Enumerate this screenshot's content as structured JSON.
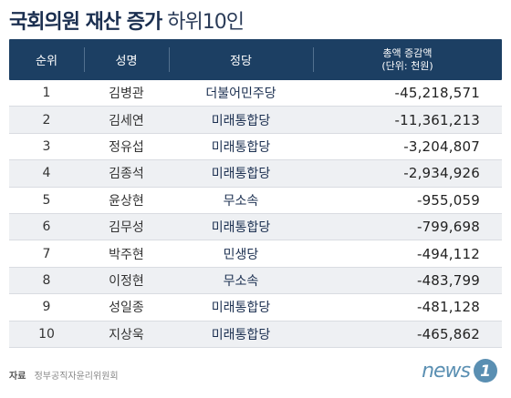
{
  "title": {
    "bold": "국회의원 재산 증가",
    "light": "하위10인"
  },
  "table": {
    "headers": {
      "rank": "순위",
      "name": "성명",
      "party": "정당",
      "amount_line1": "총액 증감액",
      "amount_line2": "(단위: 천원)"
    },
    "rows": [
      {
        "rank": "1",
        "name": "김병관",
        "party": "더불어민주당",
        "amount": "-45,218,571"
      },
      {
        "rank": "2",
        "name": "김세연",
        "party": "미래통합당",
        "amount": "-11,361,213"
      },
      {
        "rank": "3",
        "name": "정유섭",
        "party": "미래통합당",
        "amount": "-3,204,807"
      },
      {
        "rank": "4",
        "name": "김종석",
        "party": "미래통합당",
        "amount": "-2,934,926"
      },
      {
        "rank": "5",
        "name": "윤상현",
        "party": "무소속",
        "amount": "-955,059"
      },
      {
        "rank": "6",
        "name": "김무성",
        "party": "미래통합당",
        "amount": "-799,698"
      },
      {
        "rank": "7",
        "name": "박주현",
        "party": "민생당",
        "amount": "-494,112"
      },
      {
        "rank": "8",
        "name": "이정현",
        "party": "무소속",
        "amount": "-483,799"
      },
      {
        "rank": "9",
        "name": "성일종",
        "party": "미래통합당",
        "amount": "-481,128"
      },
      {
        "rank": "10",
        "name": "지상욱",
        "party": "미래통합당",
        "amount": "-465,862"
      }
    ]
  },
  "source": {
    "label": "자료",
    "text": "정부공직자윤리위원회"
  },
  "logo": {
    "text": "news",
    "mark": "1"
  },
  "colors": {
    "header_bg": "#1c3f63",
    "title": "#1b2f50",
    "stripe": "#eef0f3",
    "logo": "#5a8fb2"
  }
}
